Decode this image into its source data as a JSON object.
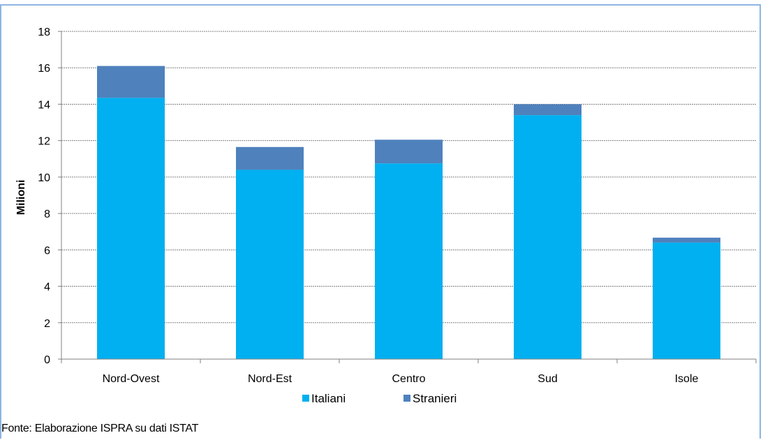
{
  "chart_data": {
    "type": "bar",
    "stacked": true,
    "categories": [
      "Nord-Ovest",
      "Nord-Est",
      "Centro",
      "Sud",
      "Isole"
    ],
    "series": [
      {
        "name": "Italiani",
        "values": [
          14.35,
          10.4,
          10.75,
          13.4,
          6.4
        ],
        "color": "#00b0f0"
      },
      {
        "name": "Stranieri",
        "values": [
          1.75,
          1.25,
          1.3,
          0.6,
          0.27
        ],
        "color": "#4f81bd"
      }
    ],
    "title": "",
    "xlabel": "",
    "ylabel": "Milioni",
    "ylim": [
      0,
      18
    ],
    "yticks": [
      0,
      2,
      4,
      6,
      8,
      10,
      12,
      14,
      16,
      18
    ],
    "grid": true,
    "legend_position": "bottom"
  },
  "source_note": "Fonte: Elaborazione ISPRA su dati ISTAT"
}
